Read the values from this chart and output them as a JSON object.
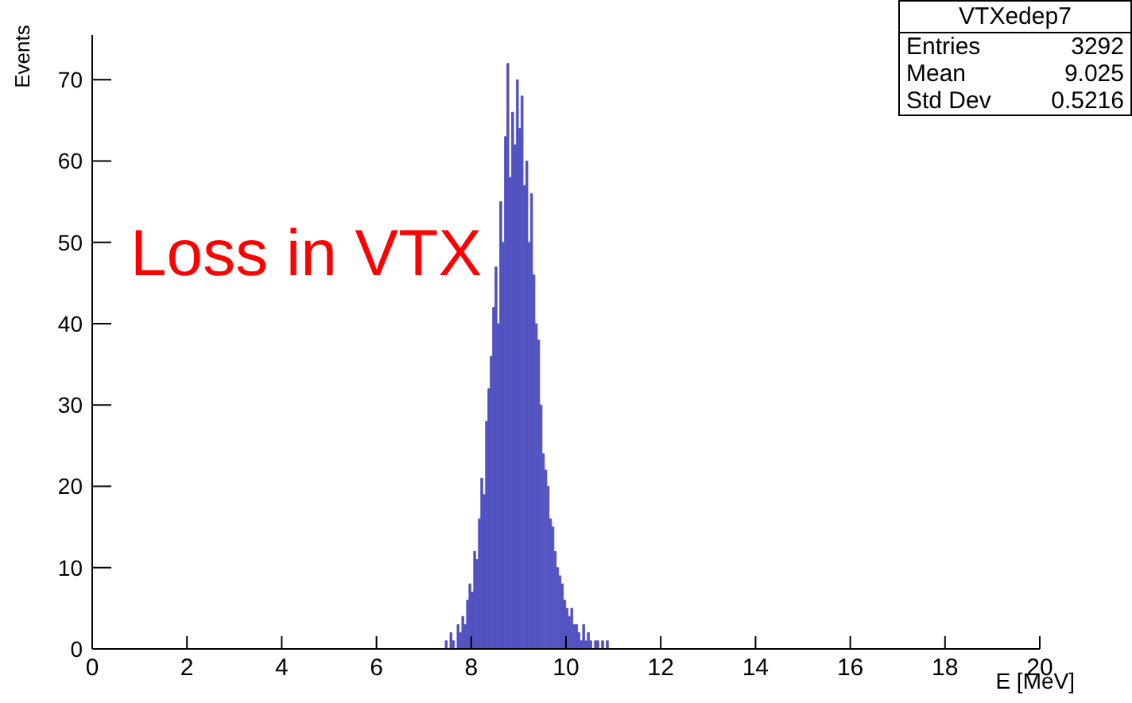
{
  "chart_data": {
    "type": "histogram",
    "xlabel": "E [MeV]",
    "ylabel": "Events",
    "bins": [
      7.4,
      7.45,
      7.5,
      7.55,
      7.6,
      7.65,
      7.7,
      7.75,
      7.8,
      7.85,
      7.9,
      7.95,
      8.0,
      8.05,
      8.1,
      8.15,
      8.2,
      8.25,
      8.3,
      8.35,
      8.4,
      8.45,
      8.5,
      8.55,
      8.6,
      8.65,
      8.7,
      8.75,
      8.8,
      8.85,
      8.9,
      8.95,
      9.0,
      9.05,
      9.1,
      9.15,
      9.2,
      9.25,
      9.3,
      9.35,
      9.4,
      9.45,
      9.5,
      9.55,
      9.6,
      9.65,
      9.7,
      9.75,
      9.8,
      9.85,
      9.9,
      9.95,
      10.0,
      10.05,
      10.1,
      10.15,
      10.2,
      10.25,
      10.3,
      10.35,
      10.4,
      10.45,
      10.5,
      10.55,
      10.6,
      10.65,
      10.7,
      10.75,
      10.8,
      10.85,
      10.9,
      10.95,
      11.0
    ],
    "values": [
      0,
      1,
      0,
      2,
      1,
      0,
      3,
      2,
      4,
      3,
      6,
      8,
      7,
      12,
      11,
      16,
      21,
      19,
      28,
      32,
      36,
      42,
      47,
      40,
      55,
      50,
      63,
      72,
      58,
      66,
      62,
      70,
      64,
      68,
      57,
      60,
      50,
      56,
      46,
      40,
      38,
      30,
      24,
      22,
      20,
      16,
      15,
      12,
      10,
      9,
      8,
      6,
      5,
      4,
      5,
      3,
      3,
      2,
      1,
      3,
      1,
      2,
      1,
      0,
      1,
      1,
      0,
      1,
      0,
      1,
      0,
      0
    ],
    "color": "#5050c0",
    "xlim": [
      0,
      20
    ],
    "xticks": [
      0,
      2,
      4,
      6,
      8,
      10,
      12,
      14,
      16,
      18,
      20
    ],
    "ylim": [
      0,
      75.5
    ],
    "yticks": [
      0,
      10,
      20,
      30,
      40,
      50,
      60,
      70
    ],
    "grid": false,
    "annotations": [
      "Loss in VTX",
      "VTXedep7",
      "Entries",
      "3292",
      "Mean",
      "9.025",
      "Std Dev",
      "0.5216"
    ]
  }
}
